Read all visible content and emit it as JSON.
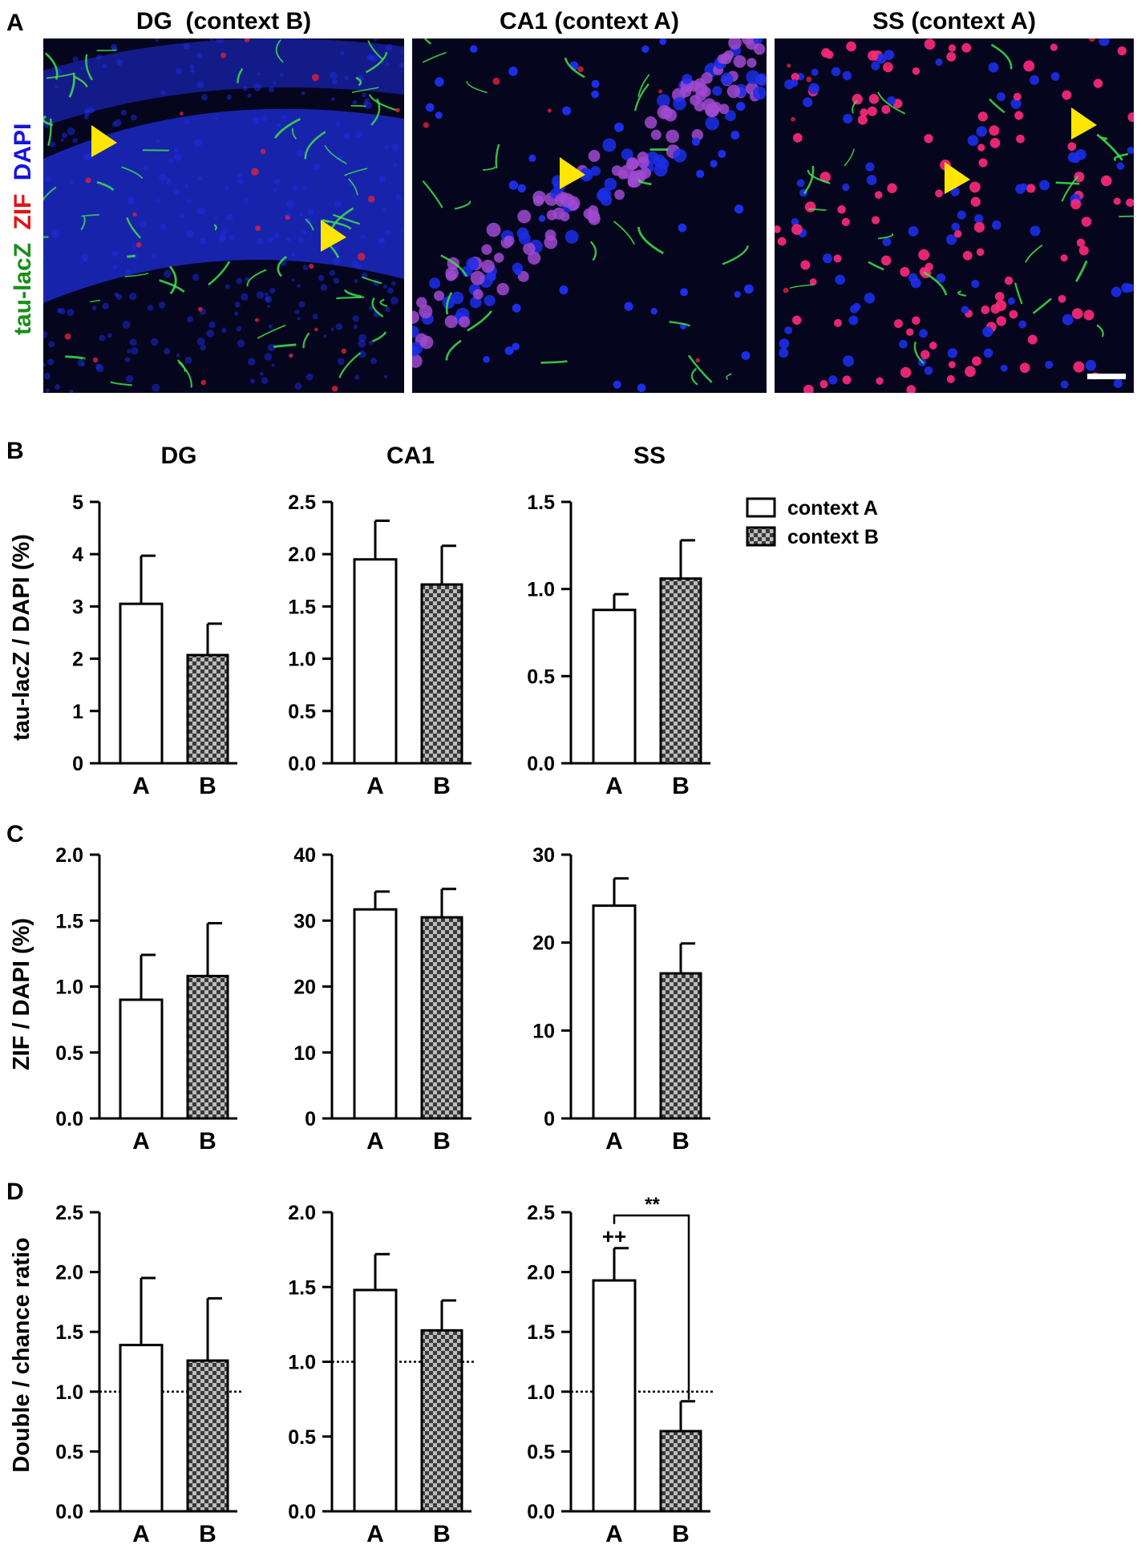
{
  "panel_letters": [
    "A",
    "B",
    "C",
    "D"
  ],
  "micrographs": {
    "channel_labels": [
      {
        "text": "tau-lacZ",
        "color": "#1a8f1a"
      },
      {
        "text": "ZIF",
        "color": "#e01515"
      },
      {
        "text": "DAPI",
        "color": "#1515e0"
      }
    ],
    "panels": [
      {
        "title": "DG  (context B)",
        "theme": "dg"
      },
      {
        "title": "CA1 (context A)",
        "theme": "ca1"
      },
      {
        "title": "SS (context A)",
        "theme": "ss"
      }
    ],
    "colors": {
      "background": "#05051e",
      "nucleus": "#1c2ee8",
      "zif": "#ff2a7a",
      "fiber": "#3ee04a",
      "arrow": "#ffe600",
      "scalebar": "#ffffff"
    }
  },
  "column_titles": [
    "DG",
    "CA1",
    "SS"
  ],
  "legend": [
    {
      "label": "context A",
      "fill": "white"
    },
    {
      "label": "context B",
      "fill": "checker"
    }
  ],
  "row_ylabels": [
    "tau-lacZ / DAPI (%)",
    "ZIF / DAPI (%)",
    "Double / chance ratio"
  ],
  "chart_data": [
    {
      "type": "bar",
      "panel": "B",
      "region": "DG",
      "categories": [
        "A",
        "B"
      ],
      "values": [
        3.05,
        2.07
      ],
      "errors": [
        0.92,
        0.6
      ],
      "ylim": [
        0,
        5
      ],
      "yticks": [
        "0",
        "1",
        "2",
        "3",
        "4",
        "5"
      ],
      "ylabel": "tau-lacZ / DAPI (%)"
    },
    {
      "type": "bar",
      "panel": "B",
      "region": "CA1",
      "categories": [
        "A",
        "B"
      ],
      "values": [
        1.95,
        1.71
      ],
      "errors": [
        0.37,
        0.37
      ],
      "ylim": [
        0,
        2.5
      ],
      "yticks": [
        "0.0",
        "0.5",
        "1.0",
        "1.5",
        "2.0",
        "2.5"
      ],
      "ylabel": "tau-lacZ / DAPI (%)"
    },
    {
      "type": "bar",
      "panel": "B",
      "region": "SS",
      "categories": [
        "A",
        "B"
      ],
      "values": [
        0.88,
        1.06
      ],
      "errors": [
        0.09,
        0.22
      ],
      "ylim": [
        0,
        1.5
      ],
      "yticks": [
        "0.0",
        "0.5",
        "1.0",
        "1.5"
      ],
      "ylabel": "tau-lacZ / DAPI (%)"
    },
    {
      "type": "bar",
      "panel": "C",
      "region": "DG",
      "categories": [
        "A",
        "B"
      ],
      "values": [
        0.9,
        1.08
      ],
      "errors": [
        0.34,
        0.4
      ],
      "ylim": [
        0,
        2
      ],
      "yticks": [
        "0.0",
        "0.5",
        "1.0",
        "1.5",
        "2.0"
      ],
      "ylabel": "ZIF / DAPI (%)"
    },
    {
      "type": "bar",
      "panel": "C",
      "region": "CA1",
      "categories": [
        "A",
        "B"
      ],
      "values": [
        31.7,
        30.5
      ],
      "errors": [
        2.7,
        4.3
      ],
      "ylim": [
        0,
        40
      ],
      "yticks": [
        "0",
        "10",
        "20",
        "30",
        "40"
      ],
      "ylabel": "ZIF / DAPI (%)"
    },
    {
      "type": "bar",
      "panel": "C",
      "region": "SS",
      "categories": [
        "A",
        "B"
      ],
      "values": [
        24.2,
        16.5
      ],
      "errors": [
        3.1,
        3.4
      ],
      "ylim": [
        0,
        30
      ],
      "yticks": [
        "0",
        "10",
        "20",
        "30"
      ],
      "ylabel": "ZIF / DAPI (%)"
    },
    {
      "type": "bar",
      "panel": "D",
      "region": "DG",
      "categories": [
        "A",
        "B"
      ],
      "values": [
        1.39,
        1.26
      ],
      "errors": [
        0.56,
        0.52
      ],
      "ylim": [
        0,
        2.5
      ],
      "yticks": [
        "0.0",
        "0.5",
        "1.0",
        "1.5",
        "2.0",
        "2.5"
      ],
      "ylabel": "Double / chance ratio",
      "reference_line": 1.0
    },
    {
      "type": "bar",
      "panel": "D",
      "region": "CA1",
      "categories": [
        "A",
        "B"
      ],
      "values": [
        1.48,
        1.21
      ],
      "errors": [
        0.24,
        0.2
      ],
      "ylim": [
        0,
        2.0
      ],
      "yticks": [
        "0.0",
        "0.5",
        "1.0",
        "1.5",
        "2.0"
      ],
      "ylabel": "Double / chance ratio",
      "reference_line": 1.0
    },
    {
      "type": "bar",
      "panel": "D",
      "region": "SS",
      "categories": [
        "A",
        "B"
      ],
      "values": [
        1.93,
        0.67
      ],
      "errors": [
        0.27,
        0.25
      ],
      "ylim": [
        0,
        2.5
      ],
      "yticks": [
        "0.0",
        "0.5",
        "1.0",
        "1.5",
        "2.0",
        "2.5"
      ],
      "ylabel": "Double / chance ratio",
      "reference_line": 1.0,
      "annotations": {
        "above_bar_A": "++",
        "bracket": "**"
      }
    }
  ]
}
